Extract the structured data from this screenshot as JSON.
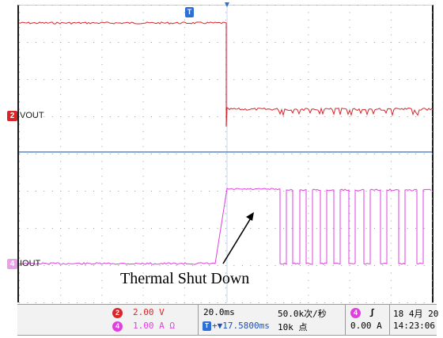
{
  "channels": {
    "vout": {
      "number": "2",
      "label": "VOUT",
      "color": "#d8262b"
    },
    "iout": {
      "number": "4",
      "label": "IOUT",
      "color": "#e040e0"
    }
  },
  "trigger_marker": "T",
  "annotation": {
    "text": "Thermal Shut Down"
  },
  "statusbar": {
    "ch2_scale": "2.00 V",
    "ch4_scale": "1.00 A Ω",
    "timebase": "20.0ms",
    "sample_rate": "50.0k次/秒",
    "trigger_delay": "+▼17.5800ms",
    "record_length": "10k 点",
    "trigger_slope": "ʃ",
    "trigger_level": "0.00 A",
    "date": "18 4月 20",
    "time": "14:23:06"
  },
  "colors": {
    "vout": "#d8262b",
    "iout": "#e040e0",
    "trigger": "#2e6fd6",
    "grid": "#9a9a9a"
  }
}
